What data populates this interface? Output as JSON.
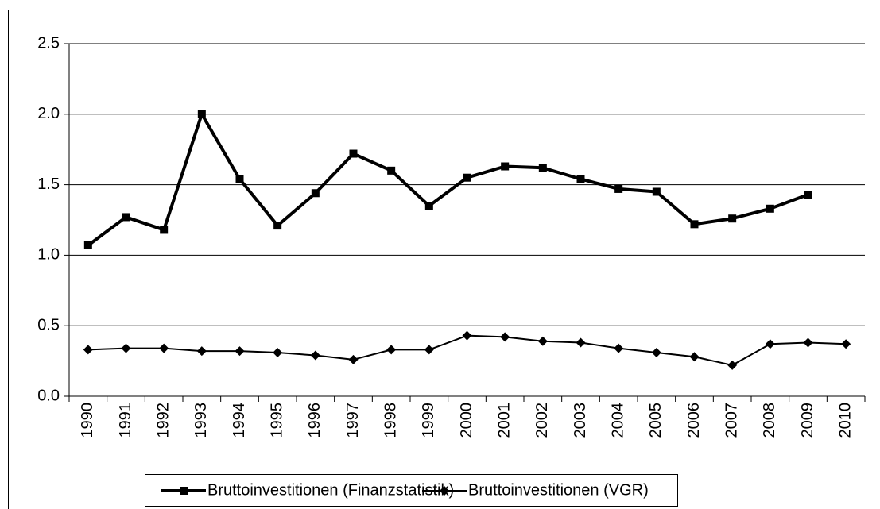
{
  "chart_data": {
    "type": "line",
    "categories": [
      "1990",
      "1991",
      "1992",
      "1993",
      "1994",
      "1995",
      "1996",
      "1997",
      "1998",
      "1999",
      "2000",
      "2001",
      "2002",
      "2003",
      "2004",
      "2005",
      "2006",
      "2007",
      "2008",
      "2009",
      "2010"
    ],
    "series": [
      {
        "name": "Bruttoinvestitionen (Finanzstatistik)",
        "color": "#000000",
        "marker": "square",
        "values": [
          1.07,
          1.27,
          1.18,
          2.0,
          1.54,
          1.21,
          1.44,
          1.72,
          1.6,
          1.35,
          1.55,
          1.63,
          1.62,
          1.54,
          1.47,
          1.45,
          1.22,
          1.26,
          1.33,
          1.43,
          null
        ]
      },
      {
        "name": "Bruttoinvestitionen (VGR)",
        "color": "#000000",
        "marker": "diamond",
        "values": [
          0.33,
          0.34,
          0.34,
          0.32,
          0.32,
          0.31,
          0.29,
          0.26,
          0.33,
          0.33,
          0.43,
          0.42,
          0.39,
          0.38,
          0.34,
          0.31,
          0.28,
          0.22,
          0.37,
          0.38,
          0.37
        ]
      }
    ],
    "ylim": [
      0,
      2.5
    ],
    "yticks": [
      {
        "value": 0,
        "label": "0.0"
      },
      0.5,
      {
        "value": 1,
        "label": "1.0"
      },
      1.5,
      {
        "value": 2,
        "label": "2.0"
      },
      2.5
    ],
    "grid": true,
    "legend": "bottom"
  }
}
